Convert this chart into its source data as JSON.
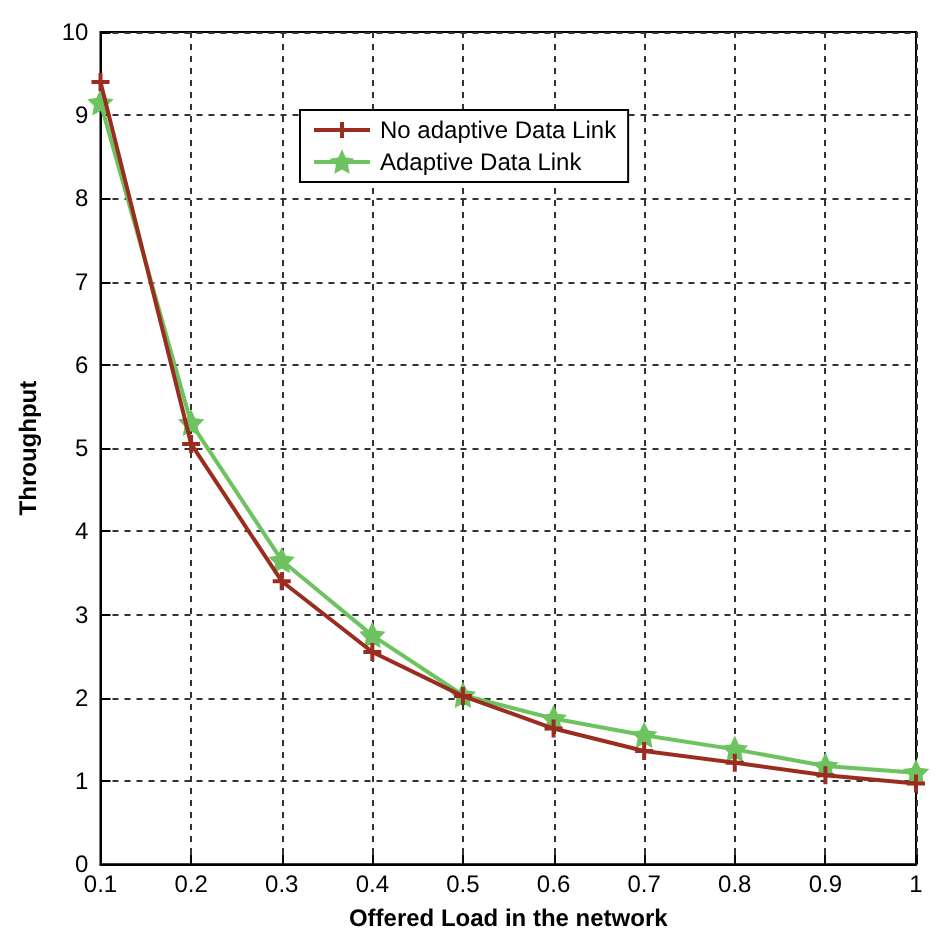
{
  "chart_data": {
    "type": "line",
    "xlabel": "Offered Load in the network",
    "ylabel": "Throughput",
    "x": [
      0.1,
      0.2,
      0.3,
      0.4,
      0.5,
      0.6,
      0.7,
      0.8,
      0.9,
      1
    ],
    "series": [
      {
        "name": "No adaptive Data Link",
        "color": "#9b2d20",
        "marker": "cross",
        "values": [
          9.4,
          5.05,
          3.4,
          2.55,
          2.02,
          1.63,
          1.36,
          1.22,
          1.07,
          0.97
        ]
      },
      {
        "name": "Adaptive Data Link",
        "color": "#6cc35f",
        "marker": "star",
        "values": [
          9.15,
          5.3,
          3.65,
          2.75,
          2.03,
          1.75,
          1.55,
          1.38,
          1.18,
          1.1
        ]
      }
    ],
    "xlim": [
      0.1,
      1
    ],
    "xticks": [
      0.1,
      0.2,
      0.3,
      0.4,
      0.5,
      0.6,
      0.7,
      0.8,
      0.9,
      1
    ],
    "ylim": [
      0,
      10
    ],
    "yticks": [
      0,
      1,
      2,
      3,
      4,
      5,
      6,
      7,
      8,
      9,
      10
    ],
    "grid": true,
    "legend": "top",
    "line_style": "solid"
  }
}
